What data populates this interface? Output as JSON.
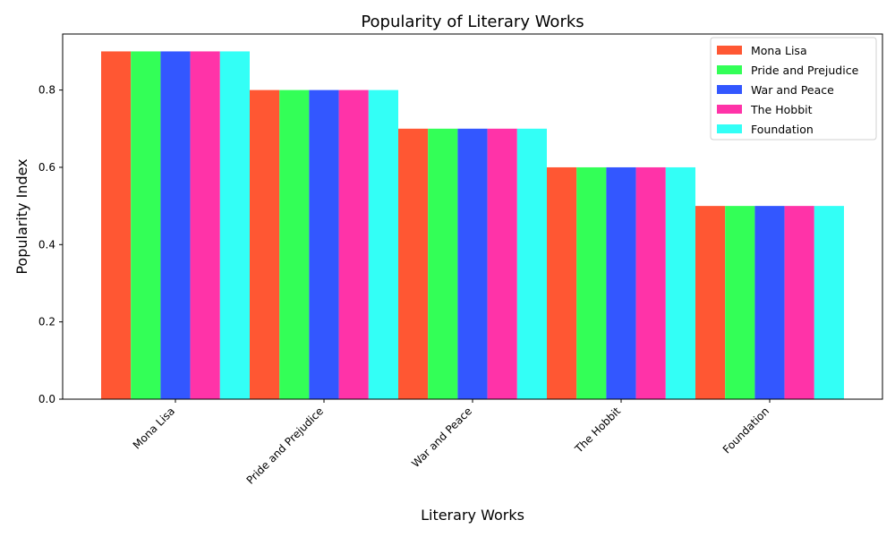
{
  "chart_data": {
    "type": "bar",
    "title": "Popularity of Literary Works",
    "xlabel": "Literary Works",
    "ylabel": "Popularity Index",
    "categories": [
      "Mona Lisa",
      "Pride and Prejudice",
      "War and Peace",
      "The Hobbit",
      "Foundation"
    ],
    "series": [
      {
        "name": "Mona Lisa",
        "color": "#FF5733",
        "values": [
          0.9,
          0.8,
          0.7,
          0.6,
          0.5
        ]
      },
      {
        "name": "Pride and Prejudice",
        "color": "#33FF57",
        "values": [
          0.9,
          0.8,
          0.7,
          0.6,
          0.5
        ]
      },
      {
        "name": "War and Peace",
        "color": "#3357FF",
        "values": [
          0.9,
          0.8,
          0.7,
          0.6,
          0.5
        ]
      },
      {
        "name": "The Hobbit",
        "color": "#FF33A8",
        "values": [
          0.9,
          0.8,
          0.7,
          0.6,
          0.5
        ]
      },
      {
        "name": "Foundation",
        "color": "#33FFF6",
        "values": [
          0.9,
          0.8,
          0.7,
          0.6,
          0.5
        ]
      }
    ],
    "ylim": [
      0,
      0.945
    ],
    "yticks": [
      "0.0",
      "0.2",
      "0.4",
      "0.6",
      "0.8"
    ],
    "grid": false,
    "legend_position": "top-right"
  }
}
